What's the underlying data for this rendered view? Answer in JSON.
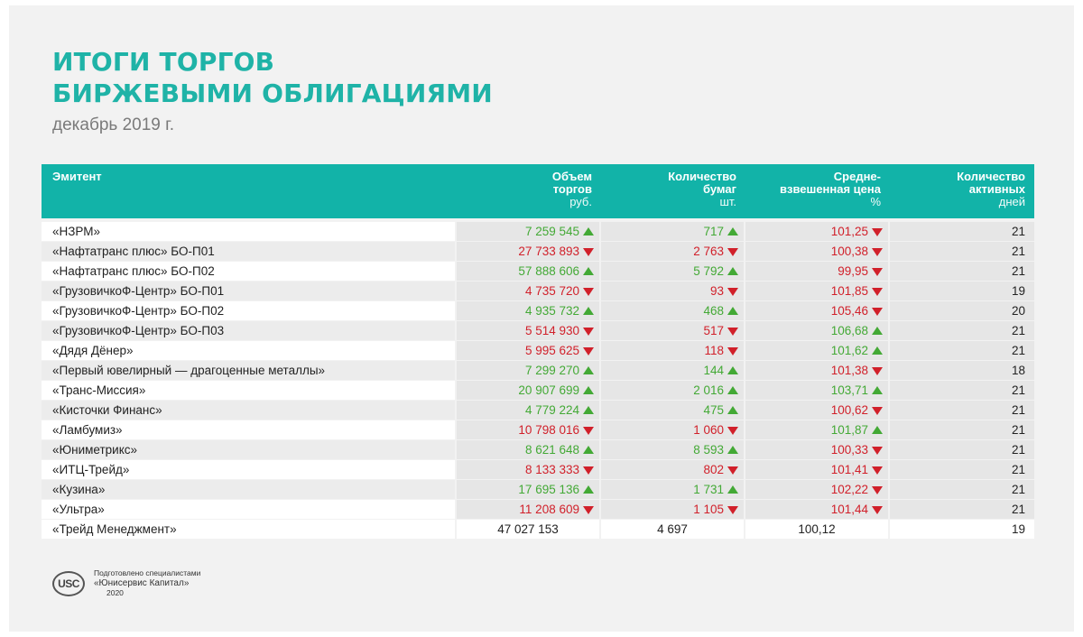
{
  "title_line1": "ИТОГИ ТОРГОВ",
  "title_line2": "БИРЖЕВЫМИ ОБЛИГАЦИЯМИ",
  "subtitle": "декабрь 2019 г.",
  "colors": {
    "accent": "#12b3a8",
    "title": "#1fb3a7",
    "up": "#43a935",
    "down": "#d1202a"
  },
  "headers": {
    "issuer": "Эмитент",
    "volume": "Объем торгов",
    "volume_unit": "руб.",
    "qty": "Количество бумаг",
    "qty_unit": "шт.",
    "price": "Средне-взвешенная цена",
    "price_unit": "%",
    "days": "Количество активных",
    "days_unit": "дней"
  },
  "rows": [
    {
      "issuer": "«НЗРМ»",
      "volume": "7 259 545",
      "volume_dir": "up",
      "qty": "717",
      "qty_dir": "up",
      "price": "101,25",
      "price_dir": "down",
      "days": "21"
    },
    {
      "issuer": "«Нафтатранс плюс» БО-П01",
      "volume": "27 733 893",
      "volume_dir": "down",
      "qty": "2 763",
      "qty_dir": "down",
      "price": "100,38",
      "price_dir": "down",
      "days": "21"
    },
    {
      "issuer": "«Нафтатранс плюс» БО-П02",
      "volume": "57 888 606",
      "volume_dir": "up",
      "qty": "5 792",
      "qty_dir": "up",
      "price": "99,95",
      "price_dir": "down",
      "days": "21"
    },
    {
      "issuer": "«ГрузовичкоФ-Центр» БО-П01",
      "volume": "4 735 720",
      "volume_dir": "down",
      "qty": "93",
      "qty_dir": "down",
      "price": "101,85",
      "price_dir": "down",
      "days": "19"
    },
    {
      "issuer": "«ГрузовичкоФ-Центр» БО-П02",
      "volume": "4 935 732",
      "volume_dir": "up",
      "qty": "468",
      "qty_dir": "up",
      "price": "105,46",
      "price_dir": "down",
      "days": "20"
    },
    {
      "issuer": "«ГрузовичкоФ-Центр» БО-П03",
      "volume": "5 514 930",
      "volume_dir": "down",
      "qty": "517",
      "qty_dir": "down",
      "price": "106,68",
      "price_dir": "up",
      "days": "21"
    },
    {
      "issuer": "«Дядя Дёнер»",
      "volume": "5 995 625",
      "volume_dir": "down",
      "qty": "118",
      "qty_dir": "down",
      "price": "101,62",
      "price_dir": "up",
      "days": "21"
    },
    {
      "issuer": "«Первый ювелирный — драгоценные металлы»",
      "volume": "7 299 270",
      "volume_dir": "up",
      "qty": "144",
      "qty_dir": "up",
      "price": "101,38",
      "price_dir": "down",
      "days": "18"
    },
    {
      "issuer": "«Транс-Миссия»",
      "volume": "20 907 699",
      "volume_dir": "up",
      "qty": "2 016",
      "qty_dir": "up",
      "price": "103,71",
      "price_dir": "up",
      "days": "21"
    },
    {
      "issuer": "«Кисточки Финанс»",
      "volume": "4 779 224",
      "volume_dir": "up",
      "qty": "475",
      "qty_dir": "up",
      "price": "100,62",
      "price_dir": "down",
      "days": "21"
    },
    {
      "issuer": "«Ламбумиз»",
      "volume": "10 798 016",
      "volume_dir": "down",
      "qty": "1 060",
      "qty_dir": "down",
      "price": "101,87",
      "price_dir": "up",
      "days": "21"
    },
    {
      "issuer": "«Юниметрикс»",
      "volume": "8 621 648",
      "volume_dir": "up",
      "qty": "8 593",
      "qty_dir": "up",
      "price": "100,33",
      "price_dir": "down",
      "days": "21"
    },
    {
      "issuer": "«ИТЦ-Трейд»",
      "volume": "8 133 333",
      "volume_dir": "down",
      "qty": "802",
      "qty_dir": "down",
      "price": "101,41",
      "price_dir": "down",
      "days": "21"
    },
    {
      "issuer": "«Кузина»",
      "volume": "17 695 136",
      "volume_dir": "up",
      "qty": "1 731",
      "qty_dir": "up",
      "price": "102,22",
      "price_dir": "down",
      "days": "21"
    },
    {
      "issuer": "«Ультра»",
      "volume": "11 208 609",
      "volume_dir": "down",
      "qty": "1 105",
      "qty_dir": "down",
      "price": "101,44",
      "price_dir": "down",
      "days": "21"
    },
    {
      "issuer": "«Трейд Менеджмент»",
      "volume": "47 027 153",
      "volume_dir": "none",
      "qty": "4 697",
      "qty_dir": "none",
      "price": "100,12",
      "price_dir": "none",
      "days": "19"
    }
  ],
  "footer": {
    "logo_text": "USC",
    "line1": "Подготовлено специалистами",
    "company": "«Юнисервис Капитал»",
    "year": "2020"
  }
}
